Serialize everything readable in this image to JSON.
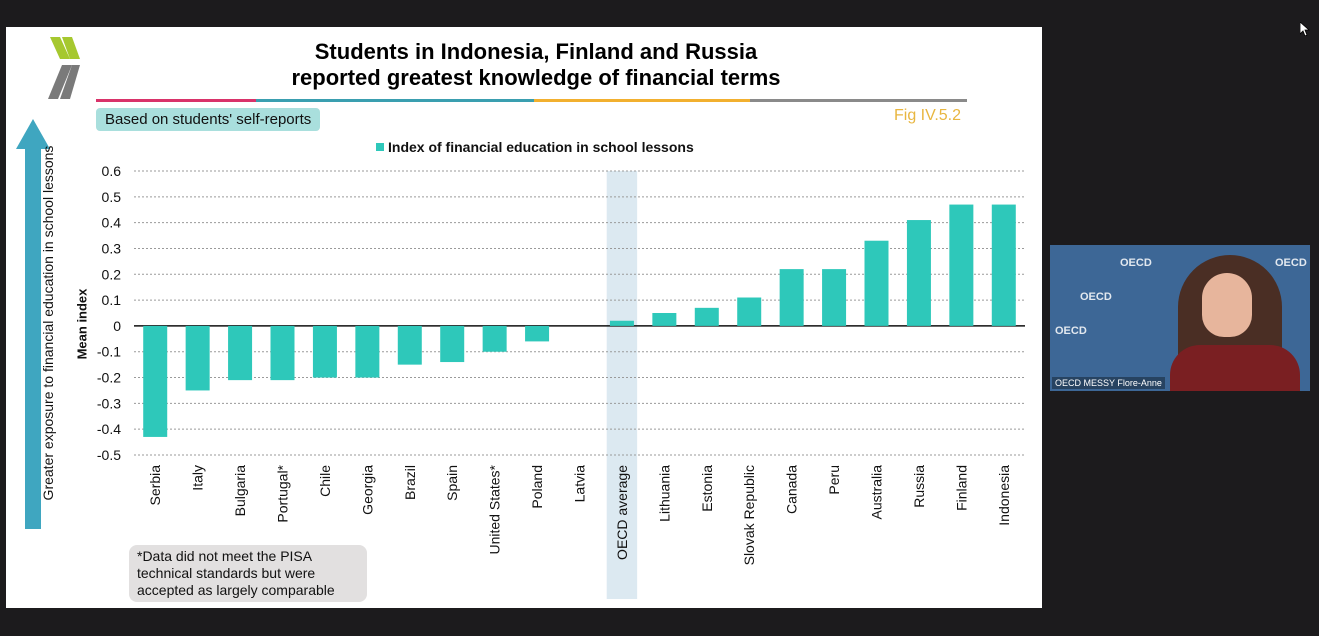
{
  "title": {
    "line1": "Students in Indonesia, Finland and Russia",
    "line2": "reported greatest knowledge of financial terms"
  },
  "note_label": "Based on students' self-reports",
  "fig_label": "Fig IV.5.2",
  "side_label": "Greater exposure to financial education in school lessons",
  "footnote": "*Data did not meet the PISA technical standards but were accepted as largely comparable",
  "video": {
    "participant_name": "OECD MESSY Flore-Anne",
    "watermark": "OECD"
  },
  "colors": {
    "bar": "#2ec8ba",
    "highlight": "#dce9f1",
    "fig_label": "#e8b640",
    "rule": [
      "#d9336a",
      "#3a9fb0",
      "#f2b02f",
      "#8a8a8a"
    ]
  },
  "icons": [
    "oecd-logo-icon",
    "up-arrow-icon",
    "cursor-icon"
  ],
  "chart_data": {
    "type": "bar",
    "ylabel": "Mean index",
    "xlabel": "",
    "ylim": [
      -0.5,
      0.6
    ],
    "yticks": [
      "0.6",
      "0.5",
      "0.4",
      "0.3",
      "0.2",
      "0.1",
      "0",
      "-0.1",
      "-0.2",
      "-0.3",
      "-0.4",
      "-0.5"
    ],
    "grid": true,
    "legend_position": "top",
    "highlighted_category": "OECD average",
    "categories": [
      "Serbia",
      "Italy",
      "Bulgaria",
      "Portugal*",
      "Chile",
      "Georgia",
      "Brazil",
      "Spain",
      "United States*",
      "Poland",
      "Latvia",
      "OECD average",
      "Lithuania",
      "Estonia",
      "Slovak Republic",
      "Canada",
      "Peru",
      "Australia",
      "Russia",
      "Finland",
      "Indonesia"
    ],
    "series": [
      {
        "name": "Index of financial education in school lessons",
        "values": [
          -0.43,
          -0.25,
          -0.21,
          -0.21,
          -0.2,
          -0.2,
          -0.15,
          -0.14,
          -0.1,
          -0.06,
          null,
          0.02,
          0.05,
          0.07,
          0.11,
          0.22,
          0.22,
          0.33,
          0.41,
          0.47,
          0.47
        ]
      }
    ]
  }
}
